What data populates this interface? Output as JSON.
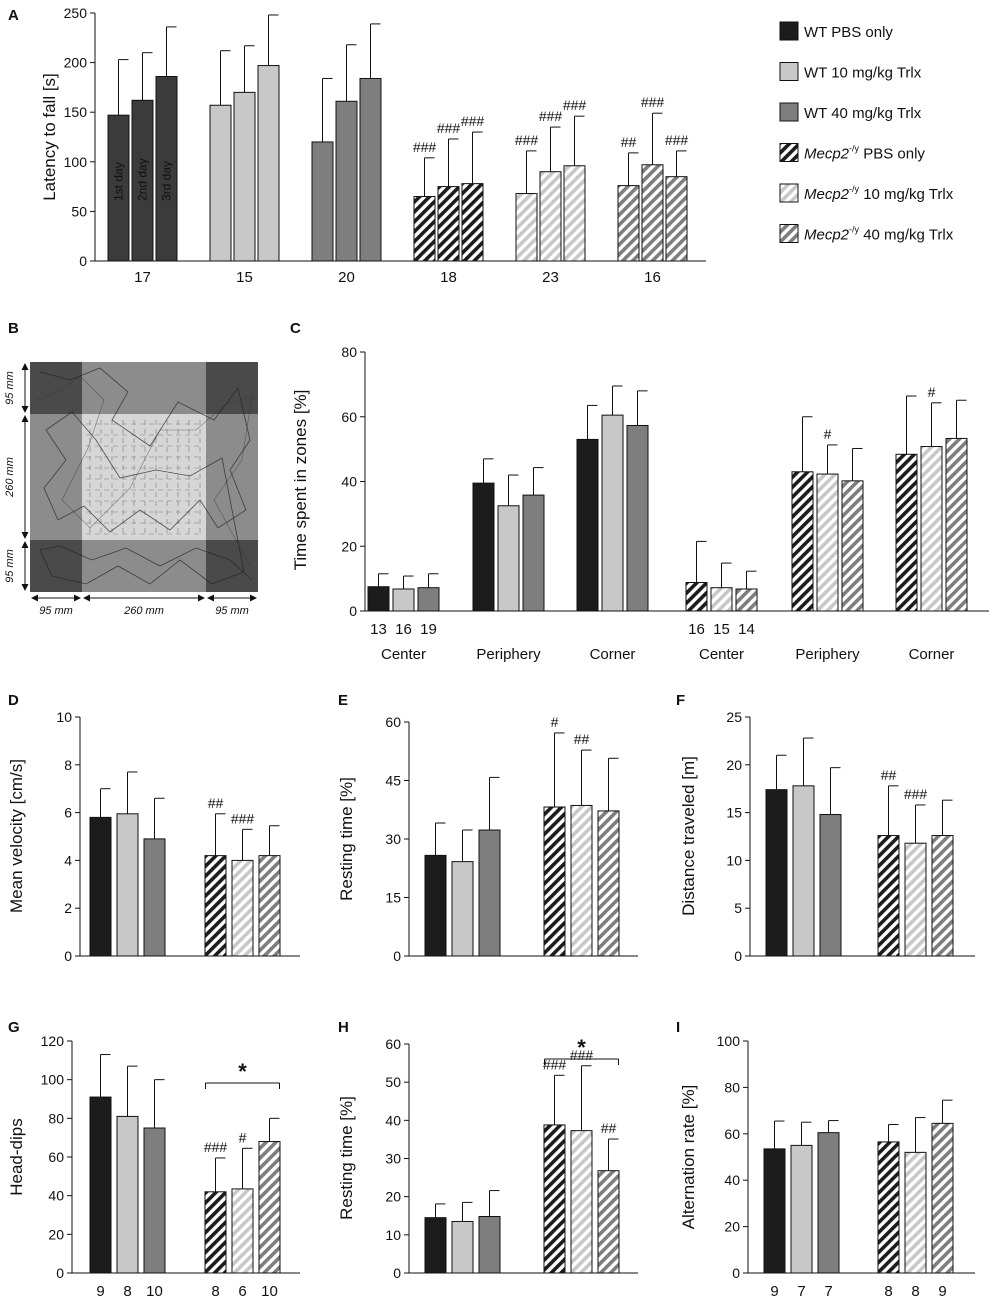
{
  "colors": {
    "wt_pbs": "#1c1c1c",
    "wt_10": "#c8c8c8",
    "wt_40": "#7e7e7e",
    "dark_day": "#3b3b3b",
    "arena_dark": "#4a4a4a",
    "arena_mid": "#8c8c8c",
    "arena_light": "#d6d6d6"
  },
  "legend": {
    "items": [
      {
        "label": "WT PBS only",
        "prefix": "",
        "sup": "",
        "style": "solid",
        "color": "#1c1c1c"
      },
      {
        "label": "WT 10 mg/kg Trlx",
        "prefix": "",
        "sup": "",
        "style": "solid",
        "color": "#c8c8c8"
      },
      {
        "label": "WT 40 mg/kg Trlx",
        "prefix": "",
        "sup": "",
        "style": "solid",
        "color": "#7e7e7e"
      },
      {
        "label": " PBS only",
        "prefix": "Mecp2",
        "sup": "-/y",
        "style": "hatch",
        "color": "#1c1c1c"
      },
      {
        "label": " 10 mg/kg Trlx",
        "prefix": "Mecp2",
        "sup": "-/y",
        "style": "hatch",
        "color": "#c8c8c8"
      },
      {
        "label": " 40 mg/kg Trlx",
        "prefix": "Mecp2",
        "sup": "-/y",
        "style": "hatch",
        "color": "#7e7e7e"
      }
    ]
  },
  "panel_b": {
    "letter": "B",
    "dims": {
      "left": "95 mm",
      "middle": "260 mm",
      "right": "95 mm",
      "top": "95 mm",
      "mid_v": "260 mm",
      "bottom": "95 mm"
    }
  },
  "chart_data": [
    {
      "panel": "A",
      "type": "bar",
      "ylabel": "Latency to fall [s]",
      "ylim": [
        0,
        250
      ],
      "yticks": [
        0,
        50,
        100,
        150,
        200,
        250
      ],
      "day_labels": [
        "1st day",
        "2nd day",
        "3rd day"
      ],
      "groups": [
        {
          "label": "17",
          "color": "dark_day",
          "hatch": false,
          "values": [
            147,
            162,
            186
          ],
          "errors": [
            56,
            48,
            50
          ],
          "annotations": [
            "",
            "",
            ""
          ]
        },
        {
          "label": "15",
          "color": "wt_10",
          "hatch": false,
          "values": [
            157,
            170,
            197
          ],
          "errors": [
            55,
            47,
            51
          ],
          "annotations": [
            "",
            "",
            ""
          ]
        },
        {
          "label": "20",
          "color": "wt_40",
          "hatch": false,
          "values": [
            120,
            161,
            184
          ],
          "errors": [
            64,
            57,
            55
          ],
          "annotations": [
            "",
            "",
            ""
          ]
        },
        {
          "label": "18",
          "color": "wt_pbs",
          "hatch": true,
          "values": [
            65,
            75,
            78
          ],
          "errors": [
            39,
            48,
            52
          ],
          "annotations": [
            "###",
            "###",
            "###"
          ]
        },
        {
          "label": "23",
          "color": "wt_10",
          "hatch": true,
          "values": [
            68,
            90,
            96
          ],
          "errors": [
            43,
            45,
            50
          ],
          "annotations": [
            "###",
            "###",
            "###"
          ]
        },
        {
          "label": "16",
          "color": "wt_40",
          "hatch": true,
          "values": [
            76,
            97,
            85
          ],
          "errors": [
            33,
            52,
            26
          ],
          "annotations": [
            "##",
            "###",
            "###"
          ]
        }
      ]
    },
    {
      "panel": "C",
      "type": "bar",
      "ylabel": "Time spent in zones [%]",
      "ylim": [
        0,
        80
      ],
      "yticks": [
        0,
        20,
        40,
        60,
        80
      ],
      "n_labels": [
        [
          "13",
          "16",
          "19"
        ],
        [
          "16",
          "15",
          "14"
        ]
      ],
      "groups": [
        {
          "label": "Center",
          "hatch": false,
          "values": [
            7.5,
            6.8,
            7.2
          ],
          "errors": [
            4,
            4,
            4.3
          ],
          "annotations": [
            "",
            "",
            ""
          ]
        },
        {
          "label": "Periphery",
          "hatch": false,
          "values": [
            39.5,
            32.5,
            35.8
          ],
          "errors": [
            7.5,
            9.5,
            8.5
          ],
          "annotations": [
            "",
            "",
            ""
          ]
        },
        {
          "label": "Corner",
          "hatch": false,
          "values": [
            53,
            60.5,
            57.3
          ],
          "errors": [
            10.5,
            9,
            10.7
          ],
          "annotations": [
            "",
            "",
            ""
          ]
        },
        {
          "label": "Center",
          "hatch": true,
          "values": [
            8.8,
            7.2,
            6.8
          ],
          "errors": [
            12.7,
            7.6,
            5.5
          ],
          "annotations": [
            "",
            "",
            ""
          ]
        },
        {
          "label": "Periphery",
          "hatch": true,
          "values": [
            43,
            42.3,
            40.2
          ],
          "errors": [
            17,
            9,
            10
          ],
          "annotations": [
            "",
            "#",
            ""
          ]
        },
        {
          "label": "Corner",
          "hatch": true,
          "values": [
            48.4,
            50.8,
            53.3
          ],
          "errors": [
            18,
            13.5,
            11.8
          ],
          "annotations": [
            "",
            "#",
            ""
          ]
        }
      ]
    },
    {
      "panel": "D",
      "type": "bar",
      "ylabel": "Mean velocity  [cm/s]",
      "ylim": [
        0,
        10
      ],
      "yticks": [
        0,
        2,
        4,
        6,
        8,
        10
      ],
      "groups": [
        {
          "hatch": false,
          "values": [
            5.8,
            5.95,
            4.9
          ],
          "errors": [
            1.2,
            1.75,
            1.7
          ],
          "annotations": [
            "",
            "",
            ""
          ]
        },
        {
          "hatch": true,
          "values": [
            4.2,
            4.0,
            4.2
          ],
          "errors": [
            1.75,
            1.3,
            1.25
          ],
          "annotations": [
            "##",
            "###",
            ""
          ]
        }
      ]
    },
    {
      "panel": "E",
      "type": "bar",
      "ylabel": "Resting time  [%]",
      "ylim": [
        0,
        60
      ],
      "yticks": [
        0,
        15,
        30,
        45,
        60
      ],
      "groups": [
        {
          "hatch": false,
          "values": [
            25.8,
            24.2,
            32.3
          ],
          "errors": [
            8.3,
            8.1,
            13.5
          ],
          "annotations": [
            "",
            "",
            ""
          ]
        },
        {
          "hatch": true,
          "values": [
            38.2,
            38.6,
            37.2
          ],
          "errors": [
            19,
            14.2,
            13.5
          ],
          "annotations": [
            "#",
            "##",
            ""
          ]
        }
      ]
    },
    {
      "panel": "F",
      "type": "bar",
      "ylabel": "Distance traveled  [m]",
      "ylim": [
        0,
        25
      ],
      "yticks": [
        0,
        5,
        10,
        15,
        20,
        25
      ],
      "groups": [
        {
          "hatch": false,
          "values": [
            17.4,
            17.8,
            14.8
          ],
          "errors": [
            3.6,
            5.0,
            4.9
          ],
          "annotations": [
            "",
            "",
            ""
          ]
        },
        {
          "hatch": true,
          "values": [
            12.6,
            11.8,
            12.6
          ],
          "errors": [
            5.2,
            4.0,
            3.7
          ],
          "annotations": [
            "##",
            "###",
            ""
          ]
        }
      ]
    },
    {
      "panel": "G",
      "type": "bar",
      "ylabel": "Head-dips",
      "ylim": [
        0,
        120
      ],
      "yticks": [
        0,
        20,
        40,
        60,
        80,
        100,
        120
      ],
      "n_labels": [
        [
          "9",
          "8",
          "10"
        ],
        [
          "8",
          "6",
          "10"
        ]
      ],
      "significance": {
        "text": "*",
        "from": [
          1,
          0
        ],
        "to": [
          1,
          2
        ]
      },
      "groups": [
        {
          "hatch": false,
          "values": [
            91,
            81,
            75
          ],
          "errors": [
            22,
            26,
            25
          ],
          "annotations": [
            "",
            "",
            ""
          ]
        },
        {
          "hatch": true,
          "values": [
            42,
            43.5,
            68
          ],
          "errors": [
            17.5,
            21,
            12
          ],
          "annotations": [
            "###",
            "#",
            ""
          ]
        }
      ]
    },
    {
      "panel": "H",
      "type": "bar",
      "ylabel": "Resting time  [%]",
      "ylim": [
        0,
        60
      ],
      "yticks": [
        0,
        10,
        20,
        30,
        40,
        50,
        60
      ],
      "significance": {
        "text": "*",
        "from": [
          1,
          0
        ],
        "to": [
          1,
          2
        ]
      },
      "groups": [
        {
          "hatch": false,
          "values": [
            14.5,
            13.5,
            14.8
          ],
          "errors": [
            3.6,
            5.0,
            6.8
          ],
          "annotations": [
            "",
            "",
            ""
          ]
        },
        {
          "hatch": true,
          "values": [
            38.8,
            37.3,
            26.8
          ],
          "errors": [
            13,
            17,
            8.3
          ],
          "annotations": [
            "###",
            "###",
            "##"
          ]
        }
      ]
    },
    {
      "panel": "I",
      "type": "bar",
      "ylabel": "Alternation rate [%]",
      "ylim": [
        0,
        100
      ],
      "yticks": [
        0,
        20,
        40,
        60,
        80,
        100
      ],
      "n_labels": [
        [
          "9",
          "7",
          "7"
        ],
        [
          "8",
          "8",
          "9"
        ]
      ],
      "groups": [
        {
          "hatch": false,
          "values": [
            53.5,
            55,
            60.5
          ],
          "errors": [
            12,
            10,
            5.2
          ],
          "annotations": [
            "",
            "",
            ""
          ]
        },
        {
          "hatch": true,
          "values": [
            56.5,
            52,
            64.5
          ],
          "errors": [
            7.5,
            15,
            10
          ],
          "annotations": [
            "",
            "",
            ""
          ]
        }
      ]
    }
  ]
}
